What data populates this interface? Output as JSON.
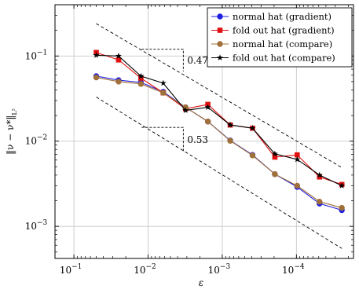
{
  "chart_data": {
    "type": "line",
    "xlabel": "ε",
    "ylabel": "‖ν − ν*‖",
    "ylabel_sub": "L²",
    "x_scale": "log",
    "y_scale": "log",
    "x_reversed": true,
    "xlim": [
      0.18,
      1.7e-05
    ],
    "ylim": [
      0.00042,
      0.4
    ],
    "grid": true,
    "legend_position": "top-right",
    "x_ticks": [
      {
        "value": 0.1,
        "base": "10",
        "exp": "−1"
      },
      {
        "value": 0.01,
        "base": "10",
        "exp": "−2"
      },
      {
        "value": 0.001,
        "base": "10",
        "exp": "−3"
      },
      {
        "value": 0.0001,
        "base": "10",
        "exp": "−4"
      }
    ],
    "y_ticks": [
      {
        "value": 0.1,
        "base": "10",
        "exp": "−1"
      },
      {
        "value": 0.01,
        "base": "10",
        "exp": "−2"
      },
      {
        "value": 0.001,
        "base": "10",
        "exp": "−3"
      }
    ],
    "x": [
      0.05,
      0.025,
      0.0125,
      0.00625,
      0.003125,
      0.0015625,
      0.00078125,
      0.000390625,
      0.0001953125,
      9.765625e-05,
      4.882813e-05,
      2.441406e-05
    ],
    "series": [
      {
        "name": "normal hat (gradient)",
        "color": "#1f1fe0",
        "marker": "circle",
        "values": [
          0.058,
          0.052,
          0.049,
          0.038,
          0.025,
          0.017,
          0.0102,
          0.0069,
          0.0041,
          0.0029,
          0.00185,
          0.00155
        ]
      },
      {
        "name": "fold out hat (gradient)",
        "color": "#e01010",
        "marker": "square",
        "values": [
          0.11,
          0.09,
          0.055,
          0.037,
          0.024,
          0.027,
          0.0155,
          0.0142,
          0.0065,
          0.0069,
          0.0038,
          0.0031
        ]
      },
      {
        "name": "normal hat (compare)",
        "color": "#a0703a",
        "marker": "circle",
        "values": [
          0.056,
          0.05,
          0.047,
          0.037,
          0.025,
          0.017,
          0.0101,
          0.0068,
          0.0041,
          0.003,
          0.00195,
          0.00165
        ]
      },
      {
        "name": "fold out hat (compare)",
        "color": "#000000",
        "marker": "star",
        "values": [
          0.102,
          0.1,
          0.058,
          0.048,
          0.023,
          0.025,
          0.0155,
          0.0142,
          0.0071,
          0.0061,
          0.004,
          0.003
        ]
      }
    ],
    "reference_lines": [
      {
        "values": [
          [
            0.05,
            0.24
          ],
          [
            2.441406e-05,
            0.0049
          ]
        ]
      },
      {
        "values": [
          [
            0.05,
            0.033
          ],
          [
            2.441406e-05,
            0.00055
          ]
        ]
      }
    ],
    "slope_triangles": [
      {
        "label": "0.47",
        "corner_a": [
          0.0122,
          0.12
        ],
        "corner_b": [
          0.00335,
          0.066
        ]
      },
      {
        "label": "0.53",
        "corner_a": [
          0.0122,
          0.0145
        ],
        "corner_b": [
          0.00335,
          0.0074
        ]
      }
    ]
  }
}
